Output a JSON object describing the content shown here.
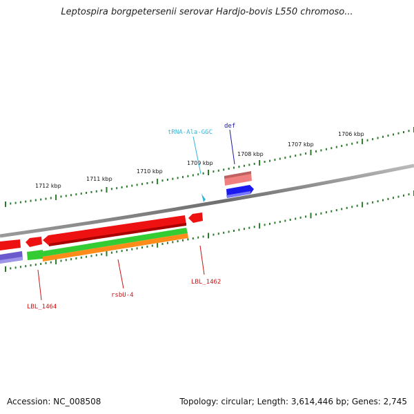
{
  "title": "Leptospira borgpetersenii serovar Hardjo-bovis L550 chromoso...",
  "footer": {
    "accession": "Accession: NC_008508",
    "summary": "Topology: circular; Length: 3,614,446 bp; Genes: 2,745"
  },
  "scale": {
    "ticks": [
      {
        "label": "1712 kbp"
      },
      {
        "label": "1711 kbp"
      },
      {
        "label": "1710 kbp"
      },
      {
        "label": "1709 kbp"
      },
      {
        "label": "1708 kbp"
      },
      {
        "label": "1707 kbp"
      },
      {
        "label": "1706 kbp"
      }
    ]
  },
  "genes": [
    {
      "label": "tRNA-Ala-GGC",
      "color": "#33b5d8"
    },
    {
      "label": "def",
      "color": "#1a1aa8"
    },
    {
      "label": "LBL_1462",
      "color": "#cc1111"
    },
    {
      "label": "rsbU-4",
      "color": "#cc1111"
    },
    {
      "label": "LBL_1464",
      "color": "#cc1111"
    }
  ],
  "colors": {
    "backbone": "#808080",
    "tick": "#2a7a2a",
    "red_feature": "#ee1111",
    "green_feature": "#33cc33",
    "orange_feature": "#ff8c1a",
    "blue_feature": "#1a1aee",
    "purple_feature": "#6a5acd",
    "pink_feature": "#f08080"
  }
}
